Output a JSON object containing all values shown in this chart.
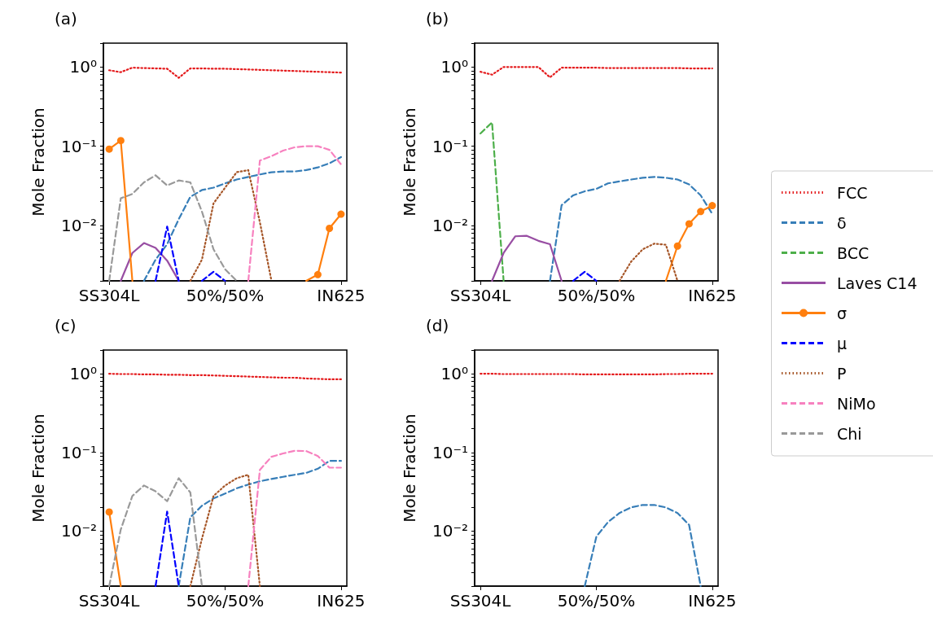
{
  "chart_data": [
    {
      "type": "line",
      "title": "(a)",
      "ylabel": "Mole Fraction",
      "log": true,
      "legend": "right",
      "categories": [
        "SS304L",
        null,
        null,
        null,
        null,
        null,
        null,
        null,
        null,
        null,
        "50%/50%",
        null,
        null,
        null,
        null,
        null,
        null,
        null,
        null,
        null,
        "IN625"
      ],
      "ylim": [
        0.002,
        2
      ],
      "yticks": [
        {
          "value": 0.002,
          "label": null
        },
        {
          "value": 0.003,
          "label": null
        },
        {
          "value": 0.004,
          "label": null
        },
        {
          "value": 0.005,
          "label": null
        },
        {
          "value": 0.006,
          "label": null
        },
        {
          "value": 0.007,
          "label": null
        },
        {
          "value": 0.008,
          "label": null
        },
        {
          "value": 0.009,
          "label": null
        },
        {
          "value": 0.01,
          "label": "10⁻²"
        },
        {
          "value": 0.02,
          "label": null
        },
        {
          "value": 0.03,
          "label": null
        },
        {
          "value": 0.04,
          "label": null
        },
        {
          "value": 0.05,
          "label": null
        },
        {
          "value": 0.06,
          "label": null
        },
        {
          "value": 0.07,
          "label": null
        },
        {
          "value": 0.08,
          "label": null
        },
        {
          "value": 0.09,
          "label": null
        },
        {
          "value": 0.1,
          "label": "10⁻¹"
        },
        {
          "value": 0.2,
          "label": null
        },
        {
          "value": 0.3,
          "label": null
        },
        {
          "value": 0.4,
          "label": null
        },
        {
          "value": 0.5,
          "label": null
        },
        {
          "value": 0.6,
          "label": null
        },
        {
          "value": 0.7,
          "label": null
        },
        {
          "value": 0.8,
          "label": null
        },
        {
          "value": 0.9,
          "label": null
        },
        {
          "value": 1,
          "label": "10⁰"
        },
        {
          "value": 2,
          "label": null
        }
      ],
      "series": [
        {
          "name": "FCC",
          "color": "#e41a1c",
          "line_style": "dotted",
          "values": [
            0.91,
            0.86,
            0.98,
            0.97,
            0.96,
            0.95,
            0.73,
            0.96,
            0.96,
            0.95,
            0.95,
            0.94,
            0.93,
            0.92,
            0.91,
            0.9,
            0.89,
            0.88,
            0.87,
            0.86,
            0.85
          ]
        },
        {
          "name": "δ",
          "color": "#377eb8",
          "line_style": "dashed",
          "values": [
            null,
            null,
            null,
            0.002,
            0.0037,
            0.0058,
            0.012,
            0.023,
            0.028,
            0.03,
            0.034,
            0.038,
            0.041,
            0.044,
            0.047,
            0.048,
            0.048,
            0.05,
            0.054,
            0.061,
            0.073
          ]
        },
        {
          "name": "Laves C14",
          "color": "#984ea3",
          "line_style": "solid",
          "values": [
            null,
            0.002,
            0.0045,
            0.006,
            0.0052,
            0.0036,
            0.002,
            null,
            null,
            null,
            null,
            null,
            null,
            null,
            null,
            null,
            null,
            null,
            null,
            null,
            null
          ]
        },
        {
          "name": "σ",
          "color": "#ff7f0e",
          "line_style": "solid",
          "marker": "circle",
          "values": [
            0.092,
            0.118,
            0.002,
            null,
            null,
            null,
            null,
            null,
            null,
            null,
            null,
            null,
            null,
            null,
            null,
            null,
            null,
            0.002,
            0.0024,
            0.0092,
            0.0139
          ]
        },
        {
          "name": "μ",
          "color": "#0000ff",
          "line_style": "dashed",
          "values": [
            null,
            null,
            null,
            null,
            0.002,
            0.0097,
            0.002,
            null,
            0.002,
            0.0026,
            0.002,
            null,
            null,
            null,
            null,
            null,
            null,
            null,
            null,
            null,
            null
          ]
        },
        {
          "name": "P",
          "color": "#a65628",
          "line_style": "dotted",
          "values": [
            null,
            null,
            null,
            null,
            null,
            null,
            null,
            0.002,
            0.0037,
            0.019,
            0.03,
            0.047,
            0.05,
            0.011,
            0.002,
            null,
            null,
            null,
            null,
            null,
            null
          ]
        },
        {
          "name": "NiMo",
          "color": "#f781bf",
          "line_style": "dashed",
          "values": [
            null,
            null,
            null,
            null,
            null,
            null,
            null,
            null,
            null,
            null,
            null,
            null,
            0.002,
            0.066,
            0.075,
            0.088,
            0.097,
            0.1,
            0.1,
            0.09,
            0.059
          ]
        },
        {
          "name": "Chi",
          "color": "#999999",
          "line_style": "dashed",
          "values": [
            0.002,
            0.022,
            0.025,
            0.035,
            0.043,
            0.032,
            0.037,
            0.035,
            0.015,
            0.005,
            0.0028,
            0.002,
            null,
            null,
            null,
            null,
            null,
            null,
            null,
            null,
            null
          ]
        }
      ]
    },
    {
      "type": "line",
      "title": "(b)",
      "ylabel": "Mole Fraction",
      "log": true,
      "legend": "right",
      "categories": [
        "SS304L",
        null,
        null,
        null,
        null,
        null,
        null,
        null,
        null,
        null,
        "50%/50%",
        null,
        null,
        null,
        null,
        null,
        null,
        null,
        null,
        null,
        "IN625"
      ],
      "ylim": [
        0.002,
        2
      ],
      "yticks": [
        {
          "value": 0.002,
          "label": null
        },
        {
          "value": 0.003,
          "label": null
        },
        {
          "value": 0.004,
          "label": null
        },
        {
          "value": 0.005,
          "label": null
        },
        {
          "value": 0.006,
          "label": null
        },
        {
          "value": 0.007,
          "label": null
        },
        {
          "value": 0.008,
          "label": null
        },
        {
          "value": 0.009,
          "label": null
        },
        {
          "value": 0.01,
          "label": "10⁻²"
        },
        {
          "value": 0.02,
          "label": null
        },
        {
          "value": 0.03,
          "label": null
        },
        {
          "value": 0.04,
          "label": null
        },
        {
          "value": 0.05,
          "label": null
        },
        {
          "value": 0.06,
          "label": null
        },
        {
          "value": 0.07,
          "label": null
        },
        {
          "value": 0.08,
          "label": null
        },
        {
          "value": 0.09,
          "label": null
        },
        {
          "value": 0.1,
          "label": "10⁻¹"
        },
        {
          "value": 0.2,
          "label": null
        },
        {
          "value": 0.3,
          "label": null
        },
        {
          "value": 0.4,
          "label": null
        },
        {
          "value": 0.5,
          "label": null
        },
        {
          "value": 0.6,
          "label": null
        },
        {
          "value": 0.7,
          "label": null
        },
        {
          "value": 0.8,
          "label": null
        },
        {
          "value": 0.9,
          "label": null
        },
        {
          "value": 1,
          "label": "10⁰"
        },
        {
          "value": 2,
          "label": null
        }
      ],
      "series": [
        {
          "name": "FCC",
          "color": "#e41a1c",
          "line_style": "dotted",
          "values": [
            0.87,
            0.8,
            1.0,
            1.0,
            1.0,
            1.0,
            0.74,
            0.98,
            0.98,
            0.98,
            0.98,
            0.97,
            0.97,
            0.97,
            0.97,
            0.97,
            0.97,
            0.97,
            0.96,
            0.96,
            0.96
          ]
        },
        {
          "name": "δ",
          "color": "#377eb8",
          "line_style": "dashed",
          "values": [
            null,
            null,
            null,
            null,
            null,
            null,
            0.002,
            0.018,
            0.024,
            0.027,
            0.029,
            0.034,
            0.036,
            0.038,
            0.04,
            0.041,
            0.04,
            0.038,
            0.033,
            0.024,
            0.014
          ]
        },
        {
          "name": "BCC",
          "color": "#4daf4a",
          "line_style": "dashed",
          "values": [
            0.145,
            0.2,
            0.002,
            null,
            null,
            null,
            null,
            null,
            null,
            null,
            null,
            null,
            null,
            null,
            null,
            null,
            null,
            null,
            null,
            null,
            null
          ]
        },
        {
          "name": "Laves C14",
          "color": "#984ea3",
          "line_style": "solid",
          "values": [
            null,
            0.002,
            0.0045,
            0.0073,
            0.0074,
            0.0064,
            0.0058,
            0.002,
            null,
            null,
            null,
            null,
            null,
            null,
            null,
            null,
            null,
            null,
            null,
            null,
            null
          ]
        },
        {
          "name": "σ",
          "color": "#ff7f0e",
          "line_style": "solid",
          "marker": "circle",
          "values": [
            null,
            null,
            null,
            null,
            null,
            null,
            null,
            null,
            null,
            null,
            null,
            null,
            null,
            null,
            null,
            null,
            0.002,
            0.0055,
            0.0105,
            0.015,
            0.0178
          ]
        },
        {
          "name": "μ",
          "color": "#0000ff",
          "line_style": "dashed",
          "values": [
            null,
            null,
            null,
            null,
            null,
            null,
            null,
            null,
            0.002,
            0.0026,
            0.002,
            null,
            null,
            null,
            null,
            null,
            null,
            null,
            null,
            null,
            null
          ]
        },
        {
          "name": "P",
          "color": "#a65628",
          "line_style": "dotted",
          "values": [
            null,
            null,
            null,
            null,
            null,
            null,
            null,
            null,
            null,
            null,
            null,
            null,
            0.002,
            0.0035,
            0.005,
            0.0059,
            0.0057,
            0.002,
            null,
            null,
            null
          ]
        }
      ]
    },
    {
      "type": "line",
      "title": "(c)",
      "ylabel": "Mole Fraction",
      "log": true,
      "legend": "right",
      "categories": [
        "SS304L",
        null,
        null,
        null,
        null,
        null,
        null,
        null,
        null,
        null,
        "50%/50%",
        null,
        null,
        null,
        null,
        null,
        null,
        null,
        null,
        null,
        "IN625"
      ],
      "ylim": [
        0.002,
        2
      ],
      "yticks": [
        {
          "value": 0.002,
          "label": null
        },
        {
          "value": 0.003,
          "label": null
        },
        {
          "value": 0.004,
          "label": null
        },
        {
          "value": 0.005,
          "label": null
        },
        {
          "value": 0.006,
          "label": null
        },
        {
          "value": 0.007,
          "label": null
        },
        {
          "value": 0.008,
          "label": null
        },
        {
          "value": 0.009,
          "label": null
        },
        {
          "value": 0.01,
          "label": "10⁻²"
        },
        {
          "value": 0.02,
          "label": null
        },
        {
          "value": 0.03,
          "label": null
        },
        {
          "value": 0.04,
          "label": null
        },
        {
          "value": 0.05,
          "label": null
        },
        {
          "value": 0.06,
          "label": null
        },
        {
          "value": 0.07,
          "label": null
        },
        {
          "value": 0.08,
          "label": null
        },
        {
          "value": 0.09,
          "label": null
        },
        {
          "value": 0.1,
          "label": "10⁻¹"
        },
        {
          "value": 0.2,
          "label": null
        },
        {
          "value": 0.3,
          "label": null
        },
        {
          "value": 0.4,
          "label": null
        },
        {
          "value": 0.5,
          "label": null
        },
        {
          "value": 0.6,
          "label": null
        },
        {
          "value": 0.7,
          "label": null
        },
        {
          "value": 0.8,
          "label": null
        },
        {
          "value": 0.9,
          "label": null
        },
        {
          "value": 1,
          "label": "10⁰"
        },
        {
          "value": 2,
          "label": null
        }
      ],
      "series": [
        {
          "name": "FCC",
          "color": "#e41a1c",
          "line_style": "dotted",
          "values": [
            1.0,
            0.99,
            0.99,
            0.98,
            0.98,
            0.97,
            0.97,
            0.96,
            0.96,
            0.95,
            0.94,
            0.93,
            0.92,
            0.91,
            0.9,
            0.89,
            0.89,
            0.87,
            0.86,
            0.85,
            0.85
          ]
        },
        {
          "name": "δ",
          "color": "#377eb8",
          "line_style": "dashed",
          "values": [
            null,
            null,
            null,
            null,
            null,
            null,
            0.002,
            0.015,
            0.021,
            0.026,
            0.03,
            0.035,
            0.039,
            0.043,
            0.046,
            0.049,
            0.052,
            0.055,
            0.062,
            0.078,
            0.078
          ]
        },
        {
          "name": "σ",
          "color": "#ff7f0e",
          "line_style": "solid",
          "marker": "circle",
          "values": [
            0.0175,
            0.002,
            null,
            null,
            null,
            null,
            null,
            null,
            null,
            null,
            null,
            null,
            null,
            null,
            null,
            null,
            null,
            null,
            null,
            null,
            null
          ]
        },
        {
          "name": "μ",
          "color": "#0000ff",
          "line_style": "dashed",
          "values": [
            null,
            null,
            null,
            null,
            0.002,
            0.0177,
            0.002,
            null,
            null,
            null,
            null,
            null,
            null,
            null,
            null,
            null,
            null,
            null,
            null,
            null,
            null
          ]
        },
        {
          "name": "P",
          "color": "#a65628",
          "line_style": "dotted",
          "values": [
            null,
            null,
            null,
            null,
            null,
            null,
            null,
            0.002,
            0.008,
            0.028,
            0.038,
            0.047,
            0.052,
            0.002,
            null,
            null,
            null,
            null,
            null,
            null,
            null
          ]
        },
        {
          "name": "NiMo",
          "color": "#f781bf",
          "line_style": "dashed",
          "values": [
            null,
            null,
            null,
            null,
            null,
            null,
            null,
            null,
            null,
            null,
            null,
            null,
            0.002,
            0.06,
            0.088,
            0.097,
            0.105,
            0.104,
            0.09,
            0.064,
            0.064
          ]
        },
        {
          "name": "Chi",
          "color": "#999999",
          "line_style": "dashed",
          "values": [
            0.002,
            0.0105,
            0.028,
            0.038,
            0.032,
            0.024,
            0.047,
            0.031,
            0.002,
            null,
            null,
            null,
            null,
            null,
            null,
            null,
            null,
            null,
            null,
            null,
            null
          ]
        }
      ]
    },
    {
      "type": "line",
      "title": "(d)",
      "ylabel": "Mole Fraction",
      "log": true,
      "legend": "right",
      "categories": [
        "SS304L",
        null,
        null,
        null,
        null,
        null,
        null,
        null,
        null,
        null,
        "50%/50%",
        null,
        null,
        null,
        null,
        null,
        null,
        null,
        null,
        null,
        "IN625"
      ],
      "ylim": [
        0.002,
        2
      ],
      "yticks": [
        {
          "value": 0.002,
          "label": null
        },
        {
          "value": 0.003,
          "label": null
        },
        {
          "value": 0.004,
          "label": null
        },
        {
          "value": 0.005,
          "label": null
        },
        {
          "value": 0.006,
          "label": null
        },
        {
          "value": 0.007,
          "label": null
        },
        {
          "value": 0.008,
          "label": null
        },
        {
          "value": 0.009,
          "label": null
        },
        {
          "value": 0.01,
          "label": "10⁻²"
        },
        {
          "value": 0.02,
          "label": null
        },
        {
          "value": 0.03,
          "label": null
        },
        {
          "value": 0.04,
          "label": null
        },
        {
          "value": 0.05,
          "label": null
        },
        {
          "value": 0.06,
          "label": null
        },
        {
          "value": 0.07,
          "label": null
        },
        {
          "value": 0.08,
          "label": null
        },
        {
          "value": 0.09,
          "label": null
        },
        {
          "value": 0.1,
          "label": "10⁻¹"
        },
        {
          "value": 0.2,
          "label": null
        },
        {
          "value": 0.3,
          "label": null
        },
        {
          "value": 0.4,
          "label": null
        },
        {
          "value": 0.5,
          "label": null
        },
        {
          "value": 0.6,
          "label": null
        },
        {
          "value": 0.7,
          "label": null
        },
        {
          "value": 0.8,
          "label": null
        },
        {
          "value": 0.9,
          "label": null
        },
        {
          "value": 1,
          "label": "10⁰"
        },
        {
          "value": 2,
          "label": null
        }
      ],
      "series": [
        {
          "name": "FCC",
          "color": "#e41a1c",
          "line_style": "dotted",
          "values": [
            1.0,
            1.0,
            0.99,
            0.99,
            0.99,
            0.99,
            0.99,
            0.99,
            0.99,
            0.98,
            0.98,
            0.98,
            0.98,
            0.98,
            0.98,
            0.98,
            0.99,
            0.99,
            1.0,
            1.0,
            1.0
          ]
        },
        {
          "name": "δ",
          "color": "#377eb8",
          "line_style": "dashed",
          "values": [
            null,
            null,
            null,
            null,
            null,
            null,
            null,
            null,
            null,
            0.002,
            0.0085,
            0.013,
            0.017,
            0.02,
            0.0215,
            0.0215,
            0.02,
            0.017,
            0.012,
            0.002,
            null
          ]
        }
      ]
    }
  ]
}
